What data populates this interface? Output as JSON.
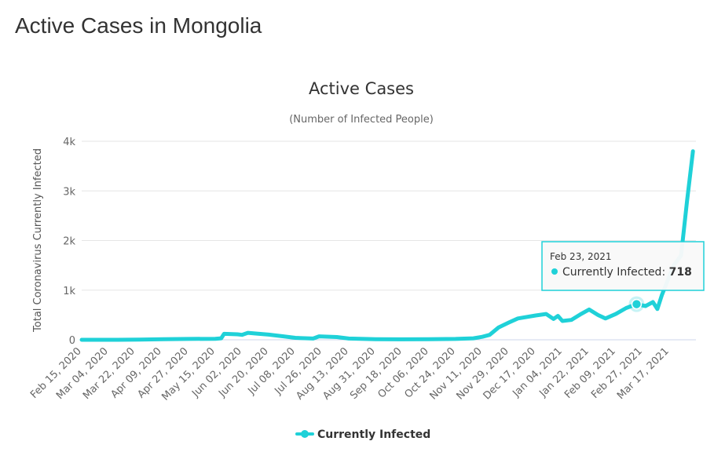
{
  "page": {
    "heading": "Active Cases in Mongolia"
  },
  "chart_data": {
    "type": "line",
    "title": "Active Cases",
    "subtitle": "(Number of Infected People)",
    "ylabel": "Total Coronavirus Currently Infected",
    "xlabel": "",
    "ylim": [
      0,
      4000
    ],
    "y_ticks": [
      {
        "value": 0,
        "label": "0"
      },
      {
        "value": 1000,
        "label": "1k"
      },
      {
        "value": 2000,
        "label": "2k"
      },
      {
        "value": 3000,
        "label": "3k"
      },
      {
        "value": 4000,
        "label": "4k"
      }
    ],
    "x_ticks": [
      "Feb 15, 2020",
      "Mar 04, 2020",
      "Mar 22, 2020",
      "Apr 09, 2020",
      "Apr 27, 2020",
      "May 15, 2020",
      "Jun 02, 2020",
      "Jun 20, 2020",
      "Jul 08, 2020",
      "Jul 26, 2020",
      "Aug 13, 2020",
      "Aug 31, 2020",
      "Sep 18, 2020",
      "Oct 06, 2020",
      "Oct 24, 2020",
      "Nov 11, 2020",
      "Nov 29, 2020",
      "Dec 17, 2020",
      "Jan 04, 2021",
      "Jan 22, 2021",
      "Feb 09, 2021",
      "Feb 27, 2021",
      "Mar 17, 2021"
    ],
    "x_range": [
      "2020-02-15",
      "2021-04-04"
    ],
    "grid": true,
    "legend_position": "bottom-center",
    "series": [
      {
        "name": "Currently Infected",
        "color": "#1fd1d8",
        "points": [
          [
            "2020-02-15",
            0
          ],
          [
            "2020-03-10",
            0
          ],
          [
            "2020-03-25",
            5
          ],
          [
            "2020-04-10",
            12
          ],
          [
            "2020-04-27",
            18
          ],
          [
            "2020-05-15",
            20
          ],
          [
            "2020-05-19",
            30
          ],
          [
            "2020-05-21",
            120
          ],
          [
            "2020-05-30",
            110
          ],
          [
            "2020-06-02",
            100
          ],
          [
            "2020-06-06",
            140
          ],
          [
            "2020-06-12",
            125
          ],
          [
            "2020-06-20",
            105
          ],
          [
            "2020-06-30",
            70
          ],
          [
            "2020-07-08",
            40
          ],
          [
            "2020-07-20",
            25
          ],
          [
            "2020-07-24",
            70
          ],
          [
            "2020-08-05",
            55
          ],
          [
            "2020-08-13",
            25
          ],
          [
            "2020-08-31",
            12
          ],
          [
            "2020-09-18",
            10
          ],
          [
            "2020-10-06",
            12
          ],
          [
            "2020-10-24",
            18
          ],
          [
            "2020-11-05",
            30
          ],
          [
            "2020-11-11",
            60
          ],
          [
            "2020-11-16",
            100
          ],
          [
            "2020-11-22",
            250
          ],
          [
            "2020-11-29",
            350
          ],
          [
            "2020-12-05",
            430
          ],
          [
            "2020-12-17",
            490
          ],
          [
            "2020-12-24",
            520
          ],
          [
            "2020-12-29",
            420
          ],
          [
            "2021-01-01",
            480
          ],
          [
            "2021-01-04",
            380
          ],
          [
            "2021-01-10",
            400
          ],
          [
            "2021-01-16",
            510
          ],
          [
            "2021-01-22",
            610
          ],
          [
            "2021-01-28",
            500
          ],
          [
            "2021-02-02",
            430
          ],
          [
            "2021-02-09",
            520
          ],
          [
            "2021-02-16",
            640
          ],
          [
            "2021-02-23",
            718
          ],
          [
            "2021-03-01",
            680
          ],
          [
            "2021-03-06",
            760
          ],
          [
            "2021-03-09",
            620
          ],
          [
            "2021-03-12",
            900
          ],
          [
            "2021-03-20",
            1500
          ],
          [
            "2021-03-25",
            1700
          ],
          [
            "2021-03-29",
            2800
          ],
          [
            "2021-04-02",
            3800
          ]
        ]
      }
    ],
    "tooltip": {
      "date": "Feb 23, 2021",
      "series": "Currently Infected",
      "value": "718",
      "point_x": "2021-02-23",
      "point_y": 718
    }
  }
}
